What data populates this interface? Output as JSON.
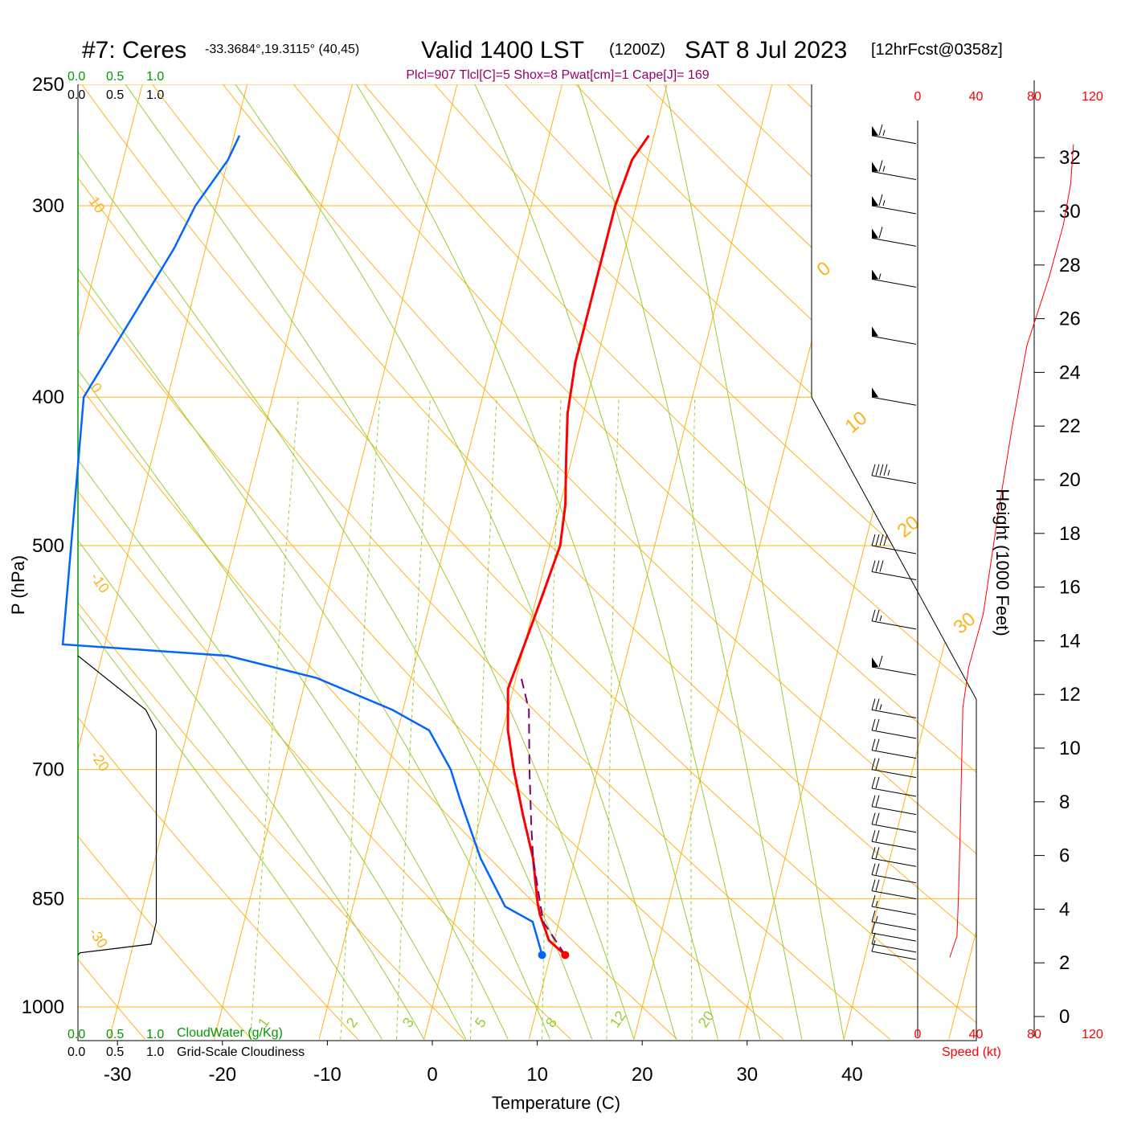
{
  "header": {
    "title_main": "#7: Ceres",
    "title_coords": "-33.3684°,19.3115° (40,45)",
    "valid": "Valid 1400 LST",
    "valid_z": "(1200Z)",
    "date": "SAT 8 Jul 2023",
    "forecast": "[12hrFcst@0358z]",
    "indices": "Plcl=907 Tlcl[C]=5 Shox=8 Pwat[cm]=1 Cape[J]= 169"
  },
  "colors": {
    "temperature": "#ff0000",
    "dewpoint": "#0066ff",
    "parcel": "#7f006f",
    "isotherm": "#ffb31a",
    "moist_adiabat": "#99cc33",
    "mixing_ratio": "#99cc33",
    "cloud_scale": "#009900",
    "speed": "#ff0000",
    "indices": "#990066"
  },
  "chart_data": {
    "type": "line",
    "chart_kind": "skew-T log-P sounding",
    "xlabel": "Temperature (C)",
    "ylabel": "P (hPa)",
    "x_ticks": [
      "-30",
      "-20",
      "-10",
      "0",
      "10",
      "20",
      "30",
      "40"
    ],
    "p_ticks": [
      "250",
      "300",
      "400",
      "500",
      "700",
      "850",
      "1000"
    ],
    "isotherm_labels": [
      "10",
      "0",
      "-10",
      "-20",
      "-30",
      "0",
      "10",
      "20",
      "30"
    ],
    "mixing_ratio_labels": [
      "1",
      "2",
      "3",
      "5",
      "8",
      "12",
      "20"
    ],
    "height_axis_label": "Height (1000 Feet)",
    "height_ticks": [
      "0",
      "2",
      "4",
      "6",
      "8",
      "10",
      "12",
      "14",
      "16",
      "18",
      "20",
      "22",
      "24",
      "26",
      "28",
      "30",
      "32"
    ],
    "speed_ticks": [
      "0",
      "40",
      "80",
      "120"
    ],
    "speed_label": "Speed (kt)",
    "cloud_top_ticks_green": [
      "0.0",
      "0.5",
      "1.0"
    ],
    "cloud_top_ticks_black": [
      "0.0",
      "0.5",
      "1.0"
    ],
    "cloudwater_label": "CloudWater (g/Kg)",
    "cloudiness_label": "Grid-Scale Cloudiness",
    "grid": true,
    "series": [
      {
        "key": "temperature",
        "points": [
          [
            11.4,
            925
          ],
          [
            9.5,
            905
          ],
          [
            8.0,
            870
          ],
          [
            7.5,
            855
          ],
          [
            6.0,
            800
          ],
          [
            4.0,
            750
          ],
          [
            2.0,
            700
          ],
          [
            0.5,
            660
          ],
          [
            -0.5,
            620
          ],
          [
            0.0,
            580
          ],
          [
            0.5,
            540
          ],
          [
            1.0,
            500
          ],
          [
            0.5,
            470
          ],
          [
            -0.5,
            440
          ],
          [
            -1.5,
            410
          ],
          [
            -2.0,
            380
          ],
          [
            -2.0,
            350
          ],
          [
            -2.0,
            320
          ],
          [
            -2.0,
            300
          ],
          [
            -1.5,
            280
          ],
          [
            -0.5,
            270
          ]
        ]
      },
      {
        "key": "dewpoint",
        "points": [
          [
            9.2,
            925
          ],
          [
            7.5,
            880
          ],
          [
            4.5,
            860
          ],
          [
            1.0,
            800
          ],
          [
            -2.5,
            730
          ],
          [
            -4.0,
            700
          ],
          [
            -7.0,
            660
          ],
          [
            -11.0,
            640
          ],
          [
            -19.0,
            610
          ],
          [
            -28.0,
            590
          ],
          [
            -44.0,
            580
          ],
          [
            -48.0,
            400
          ],
          [
            -45.0,
            350
          ],
          [
            -43.0,
            320
          ],
          [
            -42.0,
            300
          ],
          [
            -40.0,
            280
          ],
          [
            -39.5,
            270
          ]
        ]
      },
      {
        "key": "parcel",
        "points": [
          [
            11.4,
            925
          ],
          [
            8.5,
            880
          ],
          [
            6.0,
            800
          ],
          [
            5.0,
            760
          ],
          [
            3.5,
            700
          ],
          [
            2.0,
            640
          ],
          [
            0.5,
            610
          ]
        ]
      }
    ],
    "surface_temperature": 11.4,
    "surface_dewpoint": 9.2,
    "surface_pressure": 925,
    "cloudiness_profile": [
      [
        0.0,
        590
      ],
      [
        0.65,
        640
      ],
      [
        0.75,
        660
      ],
      [
        0.75,
        880
      ],
      [
        0.7,
        910
      ],
      [
        0.02,
        922
      ]
    ],
    "wind_speed_profile_kt": [
      [
        22,
        2.2
      ],
      [
        27,
        3.0
      ],
      [
        28,
        4.5
      ],
      [
        29,
        6.5
      ],
      [
        30,
        9.0
      ],
      [
        31,
        11.5
      ],
      [
        35,
        13.0
      ],
      [
        45,
        15.0
      ],
      [
        56,
        19.0
      ],
      [
        65,
        22.0
      ],
      [
        75,
        25.0
      ],
      [
        90,
        27.5
      ],
      [
        100,
        29.5
      ],
      [
        105,
        31.0
      ],
      [
        107,
        32.5
      ]
    ],
    "wind_barbs": [
      {
        "p": 270,
        "kt": 65
      },
      {
        "p": 285,
        "kt": 65
      },
      {
        "p": 300,
        "kt": 65
      },
      {
        "p": 315,
        "kt": 60
      },
      {
        "p": 335,
        "kt": 55
      },
      {
        "p": 365,
        "kt": 50
      },
      {
        "p": 400,
        "kt": 50
      },
      {
        "p": 450,
        "kt": 45
      },
      {
        "p": 500,
        "kt": 40
      },
      {
        "p": 520,
        "kt": 30
      },
      {
        "p": 560,
        "kt": 25
      },
      {
        "p": 600,
        "kt": 60
      },
      {
        "p": 640,
        "kt": 25
      },
      {
        "p": 660,
        "kt": 20
      },
      {
        "p": 680,
        "kt": 20
      },
      {
        "p": 700,
        "kt": 20
      },
      {
        "p": 720,
        "kt": 20
      },
      {
        "p": 740,
        "kt": 20
      },
      {
        "p": 760,
        "kt": 20
      },
      {
        "p": 780,
        "kt": 20
      },
      {
        "p": 800,
        "kt": 20
      },
      {
        "p": 820,
        "kt": 20
      },
      {
        "p": 840,
        "kt": 20
      },
      {
        "p": 860,
        "kt": 15
      },
      {
        "p": 880,
        "kt": 15
      },
      {
        "p": 895,
        "kt": 10
      },
      {
        "p": 910,
        "kt": 10
      },
      {
        "p": 920,
        "kt": 10
      }
    ]
  }
}
